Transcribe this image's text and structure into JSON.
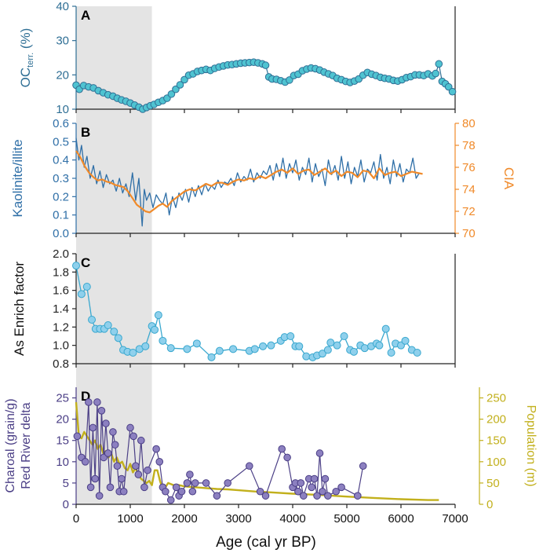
{
  "figure": {
    "x_axis_label": "Age (cal yr BP)"
  },
  "chart_data": [
    {
      "id": "A",
      "panel_label": "A",
      "type": "scatter",
      "ylabel_main": "OC",
      "ylabel_sub": "terr.",
      "ylabel_unit": " (%)",
      "ylim": [
        10,
        40
      ],
      "yticks": [
        "10",
        "20",
        "30",
        "40"
      ],
      "xlim": [
        0,
        7000
      ],
      "shaded_range": [
        0,
        1400
      ],
      "color": "#2f6f95",
      "marker_fill": "#4fc3d1",
      "x": [
        0,
        60,
        140,
        230,
        320,
        410,
        500,
        590,
        680,
        760,
        840,
        920,
        1000,
        1080,
        1160,
        1230,
        1300,
        1370,
        1440,
        1520,
        1600,
        1680,
        1760,
        1840,
        1920,
        2000,
        2080,
        2160,
        2240,
        2320,
        2400,
        2480,
        2560,
        2640,
        2720,
        2800,
        2880,
        2960,
        3040,
        3120,
        3200,
        3280,
        3360,
        3440,
        3500,
        3560,
        3620,
        3700,
        3780,
        3860,
        3940,
        4020,
        4100,
        4180,
        4260,
        4340,
        4420,
        4500,
        4580,
        4660,
        4740,
        4820,
        4900,
        4980,
        5060,
        5140,
        5220,
        5300,
        5380,
        5460,
        5540,
        5620,
        5700,
        5780,
        5860,
        5940,
        6020,
        6100,
        6180,
        6260,
        6340,
        6420,
        6500,
        6580,
        6640,
        6700,
        6760,
        6820,
        6880,
        6950
      ],
      "values": [
        17,
        15.8,
        16.9,
        16.5,
        16.2,
        15.4,
        14.8,
        14.2,
        13.8,
        13.2,
        12.7,
        12.3,
        11.8,
        11.2,
        10.6,
        10.0,
        10.5,
        11.0,
        11.4,
        12.0,
        12.5,
        13.2,
        14.4,
        15.8,
        17.1,
        18.6,
        19.9,
        20.3,
        21.0,
        21.3,
        21.6,
        21.3,
        21.9,
        22.3,
        22.6,
        22.9,
        23.0,
        23.2,
        23.4,
        23.5,
        23.6,
        23.7,
        23.5,
        23.2,
        22.8,
        19.4,
        18.8,
        18.7,
        18.3,
        17.9,
        18.5,
        19.8,
        20.2,
        21.2,
        21.7,
        22.0,
        21.8,
        21.4,
        20.8,
        20.3,
        19.8,
        19.0,
        18.6,
        18.1,
        17.8,
        18.2,
        18.8,
        19.9,
        20.7,
        20.2,
        19.8,
        19.3,
        19.0,
        18.8,
        18.4,
        18.2,
        18.6,
        19.2,
        19.5,
        20.0,
        20.0,
        19.8,
        20.3,
        19.7,
        20.4,
        23.2,
        18.1,
        17.4,
        16.5,
        15.1
      ]
    },
    {
      "id": "B",
      "panel_label": "B",
      "type": "line",
      "ylabel": "Kaolinite/illite",
      "ylim": [
        0,
        0.6
      ],
      "yticks": [
        "0.0",
        "0.1",
        "0.2",
        "0.3",
        "0.4",
        "0.5",
        "0.6"
      ],
      "y2label": "CIA",
      "y2lim": [
        70,
        80
      ],
      "y2ticks": [
        "70",
        "72",
        "74",
        "76",
        "78",
        "80"
      ],
      "xlim": [
        0,
        7000
      ],
      "series": [
        {
          "name": "Kaolinite/illite",
          "color": "#2f6fa7",
          "axis": "left",
          "x": [
            0,
            50,
            100,
            150,
            200,
            260,
            320,
            380,
            440,
            500,
            560,
            620,
            680,
            740,
            800,
            860,
            920,
            980,
            1040,
            1100,
            1160,
            1220,
            1260,
            1300,
            1360,
            1420,
            1480,
            1540,
            1600,
            1660,
            1720,
            1780,
            1840,
            1900,
            1960,
            2020,
            2080,
            2140,
            2200,
            2260,
            2320,
            2380,
            2440,
            2500,
            2560,
            2620,
            2680,
            2740,
            2800,
            2860,
            2920,
            2980,
            3040,
            3100,
            3160,
            3220,
            3280,
            3340,
            3400,
            3460,
            3520,
            3580,
            3640,
            3700,
            3760,
            3820,
            3880,
            3940,
            4000,
            4060,
            4120,
            4180,
            4240,
            4300,
            4360,
            4420,
            4480,
            4540,
            4600,
            4660,
            4720,
            4780,
            4840,
            4900,
            4960,
            5020,
            5080,
            5140,
            5200,
            5260,
            5320,
            5380,
            5440,
            5500,
            5560,
            5620,
            5680,
            5740,
            5800,
            5860,
            5920,
            5980,
            6040,
            6100,
            6160,
            6220,
            6280,
            6340
          ],
          "values": [
            0.52,
            0.4,
            0.48,
            0.36,
            0.42,
            0.3,
            0.37,
            0.27,
            0.34,
            0.25,
            0.32,
            0.27,
            0.29,
            0.23,
            0.3,
            0.22,
            0.27,
            0.2,
            0.33,
            0.18,
            0.3,
            0.04,
            0.24,
            0.18,
            0.22,
            0.14,
            0.21,
            0.18,
            0.16,
            0.22,
            0.1,
            0.2,
            0.14,
            0.22,
            0.18,
            0.24,
            0.17,
            0.25,
            0.2,
            0.26,
            0.21,
            0.27,
            0.23,
            0.26,
            0.24,
            0.29,
            0.25,
            0.28,
            0.27,
            0.3,
            0.26,
            0.33,
            0.28,
            0.31,
            0.29,
            0.35,
            0.28,
            0.33,
            0.3,
            0.34,
            0.32,
            0.37,
            0.29,
            0.38,
            0.31,
            0.41,
            0.3,
            0.38,
            0.33,
            0.4,
            0.29,
            0.36,
            0.32,
            0.41,
            0.28,
            0.38,
            0.31,
            0.35,
            0.26,
            0.4,
            0.32,
            0.37,
            0.29,
            0.42,
            0.3,
            0.39,
            0.27,
            0.36,
            0.31,
            0.4,
            0.28,
            0.35,
            0.33,
            0.39,
            0.29,
            0.43,
            0.3,
            0.36,
            0.27,
            0.4,
            0.31,
            0.38,
            0.28,
            0.35,
            0.33,
            0.41,
            0.3,
            0.33
          ]
        },
        {
          "name": "CIA",
          "color": "#f08a2a",
          "axis": "right",
          "x": [
            0,
            80,
            160,
            240,
            320,
            400,
            480,
            560,
            640,
            720,
            800,
            880,
            960,
            1040,
            1120,
            1200,
            1280,
            1360,
            1440,
            1520,
            1600,
            1680,
            1760,
            1840,
            1920,
            2000,
            2100,
            2200,
            2300,
            2400,
            2500,
            2600,
            2700,
            2800,
            2900,
            3000,
            3100,
            3200,
            3300,
            3400,
            3500,
            3600,
            3700,
            3800,
            3900,
            4000,
            4100,
            4200,
            4300,
            4400,
            4500,
            4600,
            4700,
            4800,
            4900,
            5000,
            5100,
            5200,
            5300,
            5400,
            5500,
            5600,
            5700,
            5800,
            5900,
            6000,
            6100,
            6200,
            6300,
            6400
          ],
          "values": [
            77.5,
            76.9,
            76.1,
            75.5,
            75.1,
            74.8,
            74.9,
            74.7,
            74.6,
            74.4,
            74.3,
            74.2,
            73.8,
            73.2,
            72.6,
            72.3,
            72.0,
            71.9,
            72.2,
            72.5,
            72.7,
            72.4,
            72.9,
            73.2,
            73.5,
            73.8,
            74.0,
            73.9,
            74.2,
            74.5,
            74.3,
            74.6,
            74.6,
            74.4,
            74.7,
            74.9,
            74.8,
            75.0,
            74.9,
            75.2,
            75.0,
            75.3,
            75.6,
            75.8,
            75.5,
            75.9,
            75.4,
            75.7,
            75.8,
            75.3,
            75.6,
            75.9,
            75.4,
            75.7,
            75.2,
            75.6,
            75.5,
            75.1,
            75.7,
            75.6,
            75.0,
            75.9,
            75.3,
            75.5,
            75.6,
            75.2,
            75.4,
            75.6,
            75.5,
            75.4
          ]
        }
      ]
    },
    {
      "id": "C",
      "panel_label": "C",
      "type": "line",
      "ylabel": "As Enrich factor",
      "ylim": [
        0.8,
        2.0
      ],
      "yticks": [
        "0.8",
        "1.0",
        "1.2",
        "1.4",
        "1.6",
        "1.8",
        "2.0"
      ],
      "xlim": [
        0,
        7000
      ],
      "color": "#3aa8cf",
      "marker_fill": "#8fd0ec",
      "x": [
        0,
        100,
        200,
        290,
        360,
        440,
        520,
        590,
        700,
        780,
        870,
        950,
        1050,
        1170,
        1280,
        1400,
        1450,
        1520,
        1600,
        1750,
        2050,
        2230,
        2500,
        2650,
        2900,
        3200,
        3300,
        3450,
        3600,
        3780,
        3850,
        3960,
        4050,
        4120,
        4250,
        4370,
        4450,
        4550,
        4650,
        4700,
        4820,
        4950,
        5060,
        5130,
        5250,
        5330,
        5450,
        5550,
        5600,
        5720,
        5820,
        5900,
        6000,
        6080,
        6200,
        6300
      ],
      "values": [
        1.87,
        1.56,
        1.64,
        1.28,
        1.18,
        1.18,
        1.18,
        1.22,
        1.15,
        1.08,
        0.95,
        0.93,
        0.92,
        0.96,
        0.99,
        1.21,
        1.17,
        1.33,
        1.05,
        0.97,
        0.96,
        1.02,
        0.87,
        0.94,
        0.96,
        0.94,
        0.96,
        0.99,
        1.0,
        1.05,
        1.09,
        1.1,
        0.99,
        0.99,
        0.88,
        0.87,
        0.89,
        0.91,
        0.95,
        1.03,
        1.0,
        1.1,
        0.95,
        0.93,
        1.0,
        0.97,
        0.99,
        1.02,
        1.0,
        1.18,
        0.92,
        1.02,
        1.0,
        1.05,
        0.95,
        0.92
      ]
    },
    {
      "id": "D",
      "panel_label": "D",
      "type": "line",
      "ylabel_line1": "Charoal (grain/g)",
      "ylabel_line2": "Red River delta",
      "ylim": [
        0,
        27.5
      ],
      "yticks": [
        "0",
        "5",
        "10",
        "15",
        "20",
        "25"
      ],
      "y2label": "Population (m)",
      "y2lim": [
        0,
        275
      ],
      "y2ticks": [
        "0",
        "50",
        "100",
        "150",
        "200",
        "250"
      ],
      "xlim": [
        0,
        7000
      ],
      "shaded_range": [
        0,
        1400
      ],
      "series": [
        {
          "name": "Charcoal",
          "color": "#4b3f86",
          "marker_fill": "#8c80c0",
          "axis": "left",
          "x": [
            20,
            100,
            170,
            230,
            270,
            310,
            350,
            390,
            430,
            470,
            510,
            550,
            590,
            630,
            680,
            720,
            760,
            800,
            840,
            880,
            1000,
            1060,
            1100,
            1150,
            1200,
            1260,
            1320,
            1480,
            1540,
            1600,
            1650,
            1750,
            1850,
            1900,
            1950,
            2050,
            2100,
            2150,
            2200,
            2400,
            2600,
            2800,
            3200,
            3400,
            3500,
            3800,
            3900,
            4000,
            4050,
            4100,
            4150,
            4200,
            4300,
            4350,
            4400,
            4450,
            4500,
            4550,
            4600,
            4650,
            4800,
            4900,
            5200,
            5300
          ],
          "values": [
            16,
            11,
            10,
            24,
            4,
            18,
            6,
            24,
            2,
            22,
            11,
            19,
            12,
            4,
            17,
            14,
            9,
            3,
            6,
            3,
            18,
            16,
            9,
            7,
            15,
            4,
            8,
            13,
            10,
            4,
            3,
            1,
            4,
            2,
            3,
            5,
            7,
            3,
            5,
            5,
            2,
            5,
            9,
            3,
            2,
            13,
            11,
            4,
            5,
            3,
            5,
            2,
            6,
            4,
            6,
            2,
            12,
            3,
            6,
            2,
            3,
            4,
            2,
            9
          ]
        },
        {
          "name": "Population",
          "color": "#c2b01c",
          "axis": "right",
          "x": [
            0,
            50,
            100,
            150,
            200,
            250,
            300,
            350,
            400,
            450,
            500,
            550,
            600,
            650,
            700,
            750,
            800,
            850,
            900,
            950,
            1000,
            1050,
            1100,
            1150,
            1200,
            1250,
            1300,
            1350,
            1400,
            1450,
            1500,
            1550,
            1600,
            1650,
            1700,
            1800,
            1900,
            2000,
            2200,
            2400,
            2600,
            2800,
            3000,
            3300,
            3600,
            4000,
            4500,
            5000,
            5500,
            6000,
            6500,
            6700
          ],
          "values": [
            240,
            160,
            155,
            170,
            160,
            150,
            140,
            150,
            130,
            140,
            120,
            125,
            110,
            120,
            100,
            110,
            95,
            100,
            85,
            80,
            95,
            75,
            85,
            70,
            60,
            55,
            50,
            55,
            45,
            80,
            80,
            55,
            35,
            40,
            50,
            45,
            45,
            42,
            40,
            38,
            36,
            35,
            33,
            30,
            28,
            25,
            22,
            18,
            15,
            12,
            10,
            10
          ]
        }
      ]
    }
  ]
}
